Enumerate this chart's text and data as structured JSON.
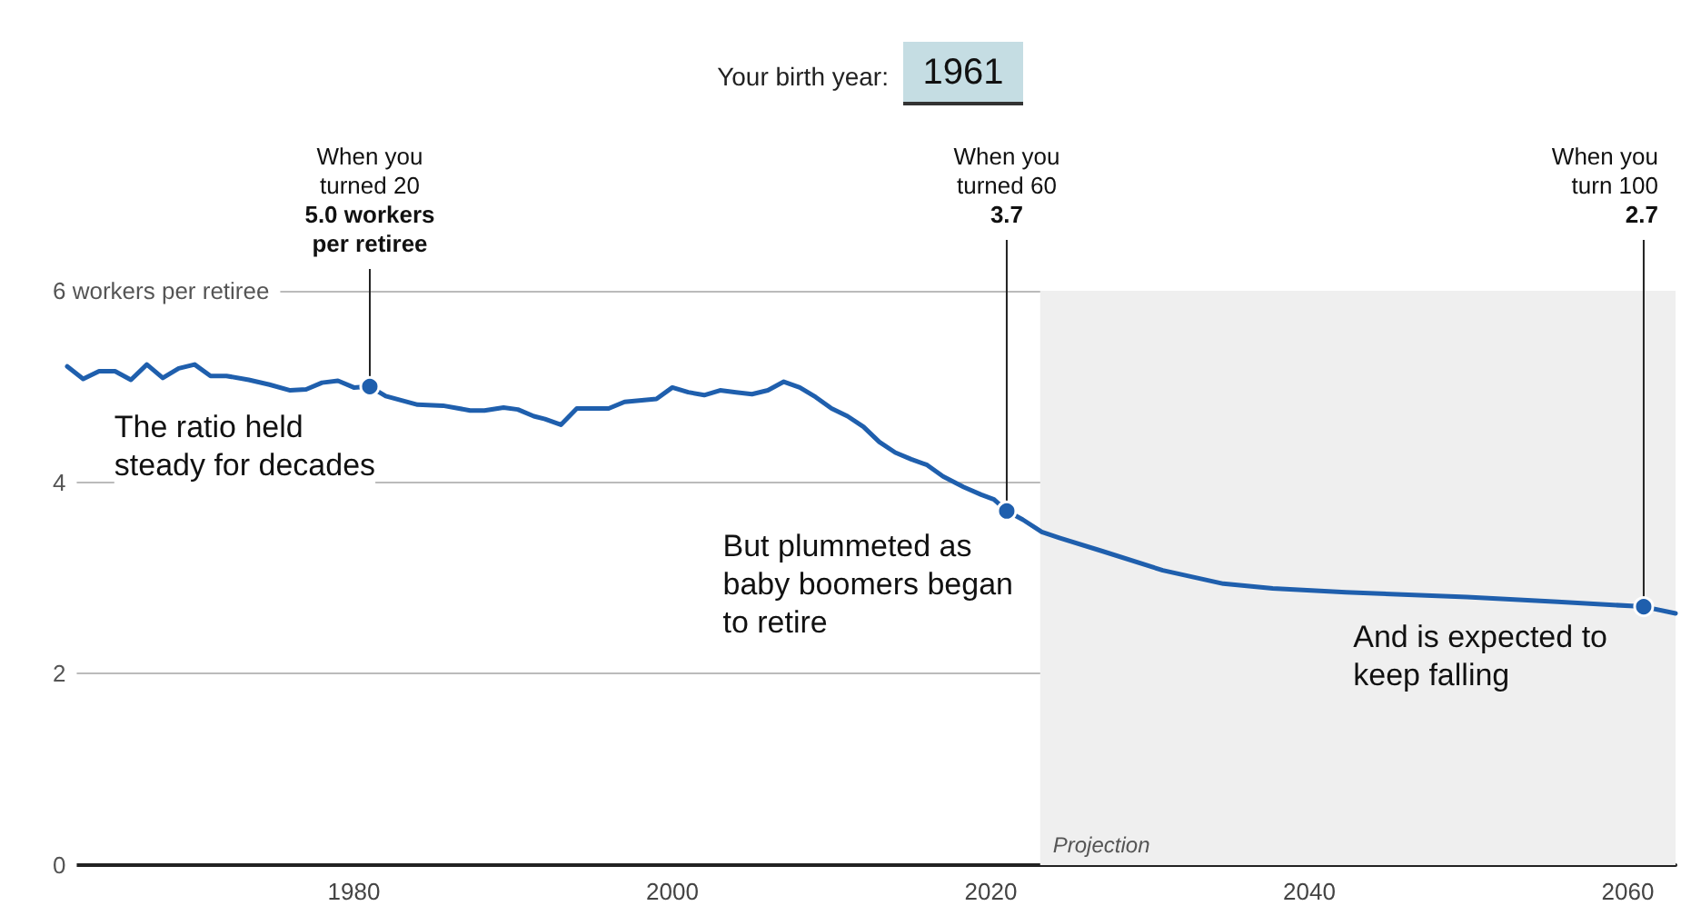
{
  "chart_data": {
    "type": "line",
    "title": "Your birth year:",
    "subtitle": "1961",
    "x": [
      1962,
      1963,
      1964,
      1965,
      1966,
      1967,
      1968,
      1969,
      1970,
      1971,
      1972,
      1973.4,
      1974.7,
      1976,
      1977,
      1978,
      1979,
      1980,
      1981,
      1982,
      1984,
      1985.6,
      1987.3,
      1988.2,
      1989.4,
      1990.3,
      1991.3,
      1992,
      1993,
      1994,
      1995,
      1996,
      1997,
      1999,
      2000,
      2001,
      2002,
      2003,
      2004,
      2005,
      2006,
      2007,
      2008,
      2009,
      2010,
      2011,
      2012,
      2013,
      2014,
      2015,
      2016,
      2017,
      2018.3,
      2019.4,
      2020.2,
      2021,
      2022,
      2023.2,
      2024.3,
      2027,
      2030.8,
      2034.6,
      2037.7,
      2042.3,
      2049.9,
      2055.6,
      2061,
      2063
    ],
    "series": [
      {
        "color": "#1f5fad",
        "values": [
          5.21,
          5.08,
          5.16,
          5.16,
          5.07,
          5.23,
          5.09,
          5.19,
          5.23,
          5.11,
          5.11,
          5.07,
          5.02,
          4.96,
          4.97,
          5.04,
          5.06,
          4.99,
          5.0,
          4.9,
          4.81,
          4.8,
          4.75,
          4.75,
          4.78,
          4.76,
          4.69,
          4.66,
          4.6,
          4.77,
          4.77,
          4.77,
          4.84,
          4.87,
          4.99,
          4.94,
          4.91,
          4.96,
          4.94,
          4.92,
          4.96,
          5.05,
          4.99,
          4.89,
          4.77,
          4.69,
          4.58,
          4.42,
          4.31,
          4.24,
          4.18,
          4.06,
          3.95,
          3.87,
          3.82,
          3.7,
          3.61,
          3.48,
          3.42,
          3.28,
          3.08,
          2.94,
          2.89,
          2.85,
          2.8,
          2.75,
          2.7,
          2.63
        ]
      }
    ],
    "xlim": [
      1962,
      2063
    ],
    "xticks": [
      1980,
      2000,
      2020,
      2040,
      2060
    ],
    "ylim": [
      0,
      6
    ],
    "yticks": [
      0,
      2,
      4,
      {
        "value": 6,
        "label": "6 workers per retiree"
      }
    ],
    "grid": "y",
    "marker": "none",
    "line_style": "solid",
    "bands": [
      {
        "axis": "x",
        "from": 2023.1,
        "to": 2063,
        "label": "Projection",
        "color": "#efefef"
      }
    ],
    "annotations": [
      {
        "text": "When you\nturned 20\n5.0 workers\nper retiree",
        "x": 1981,
        "y": 5.0
      },
      {
        "text": "When you\nturned 60\n3.7",
        "x": 2021,
        "y": 3.7
      },
      {
        "text": "When you\nturn 100\n2.7",
        "x": 2061,
        "y": 2.7
      },
      "The ratio held\nsteady for decades",
      "But plummeted as\nbaby boomers began\nto retire",
      "And is expected to\nkeep falling"
    ]
  }
}
